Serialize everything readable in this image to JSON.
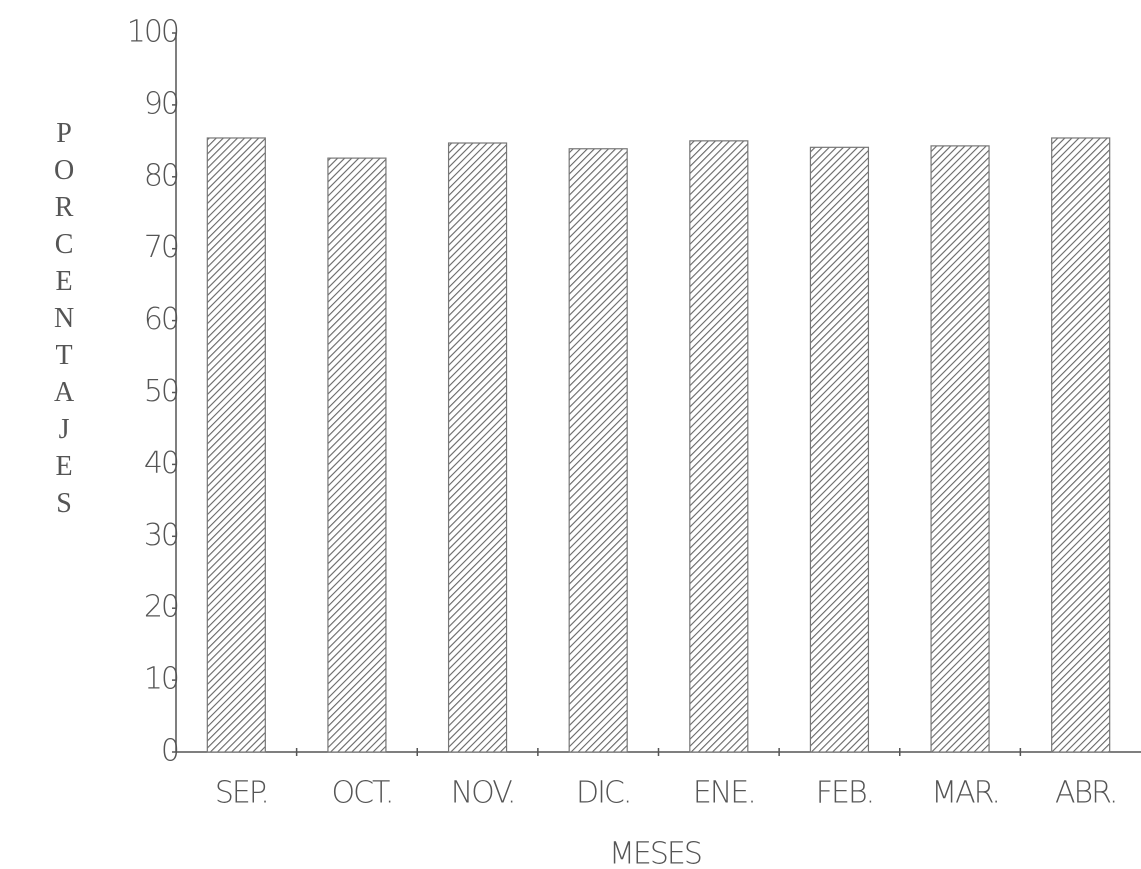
{
  "chart_data": {
    "type": "bar",
    "x_label": "MESES",
    "y_label": "PORCENTAJES",
    "categories": [
      "SEP.",
      "OCT.",
      "NOV.",
      "DIC.",
      "ENE.",
      "FEB.",
      "MAR.",
      "ABR."
    ],
    "values": [
      85.4,
      82.6,
      84.7,
      83.9,
      85.0,
      84.1,
      84.3,
      85.4
    ],
    "color": "#777777",
    "ylim": [
      0,
      100
    ],
    "yticks": [
      0,
      10,
      20,
      30,
      40,
      50,
      60,
      70,
      80,
      90,
      100
    ],
    "grid": false
  }
}
